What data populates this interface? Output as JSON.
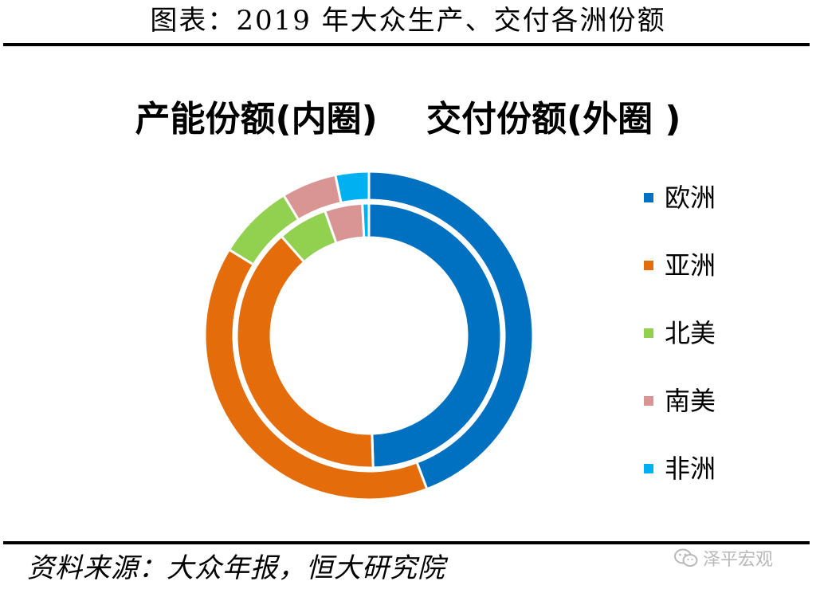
{
  "header": {
    "title": "图表：2019 年大众生产、交付各洲份额"
  },
  "source": {
    "text": "资料来源：大众年报，恒大研究院"
  },
  "watermark": {
    "text": "泽平宏观",
    "icon": "wechat-icon"
  },
  "chart_data": {
    "type": "donut",
    "title": "产能份额(内圈)    交付份额(外圈 )",
    "legend_position": "right",
    "categories": [
      "欧洲",
      "亚洲",
      "北美",
      "南美",
      "非洲"
    ],
    "colors": [
      "#0070C0",
      "#E46C0A",
      "#92D050",
      "#D99594",
      "#00B0F0"
    ],
    "series": [
      {
        "ring": "inner",
        "values": [
          49.5,
          39.0,
          6.1,
          4.6,
          0.8
        ]
      },
      {
        "ring": "outer",
        "values": [
          45.8,
          40.9,
          7.8,
          5.6,
          3.4
        ]
      }
    ]
  }
}
